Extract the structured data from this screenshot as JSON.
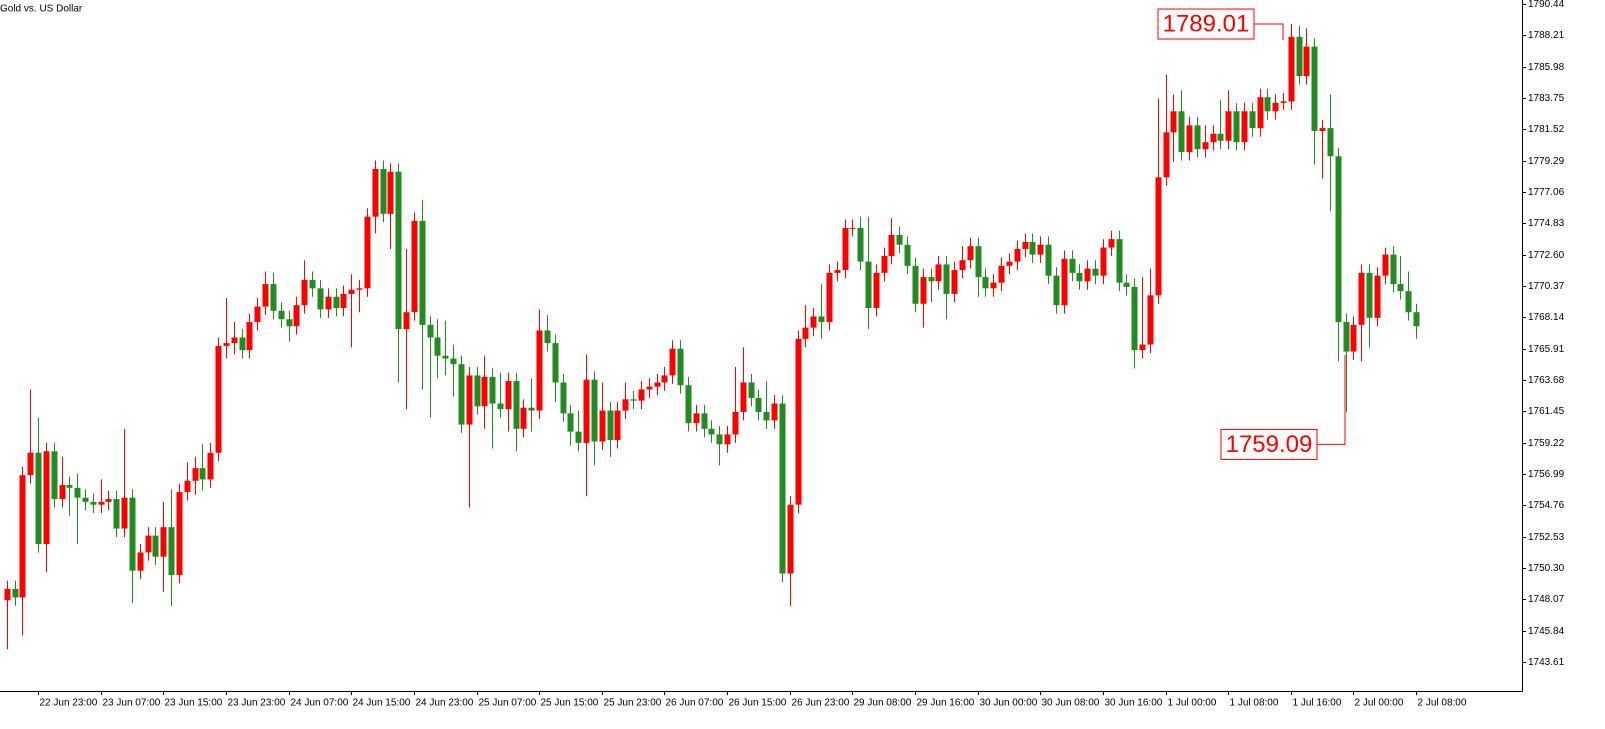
{
  "chart_data": {
    "type": "candlestick",
    "title": "Gold vs. US Dollar",
    "up_color": "#ff0000",
    "down_color": "#228b22",
    "grid": false,
    "ylim": [
      1741.54,
      1790.72
    ],
    "yticks": [
      1790.44,
      1788.21,
      1785.98,
      1783.75,
      1781.52,
      1779.29,
      1777.06,
      1774.83,
      {
        "value": 1772.6,
        "label": "1772.60"
      },
      1770.37,
      1768.14,
      1765.91,
      1763.68,
      1761.45,
      1759.22,
      1756.99,
      1754.76,
      1752.53,
      {
        "value": 1750.3,
        "label": "1750.30"
      },
      1748.07,
      1745.84,
      1743.61
    ],
    "categories": [
      null,
      null,
      null,
      null,
      "22 Jun 23:00",
      null,
      null,
      null,
      null,
      null,
      null,
      null,
      "23 Jun 07:00",
      null,
      null,
      null,
      null,
      null,
      null,
      null,
      "23 Jun 15:00",
      null,
      null,
      null,
      null,
      null,
      null,
      null,
      "23 Jun 23:00",
      null,
      null,
      null,
      null,
      null,
      null,
      null,
      "24 Jun 07:00",
      null,
      null,
      null,
      null,
      null,
      null,
      null,
      "24 Jun 15:00",
      null,
      null,
      null,
      null,
      null,
      null,
      null,
      "24 Jun 23:00",
      null,
      null,
      null,
      null,
      null,
      null,
      null,
      "25 Jun 07:00",
      null,
      null,
      null,
      null,
      null,
      null,
      null,
      "25 Jun 15:00",
      null,
      null,
      null,
      null,
      null,
      null,
      null,
      "25 Jun 23:00",
      null,
      null,
      null,
      null,
      null,
      null,
      null,
      "26 Jun 07:00",
      null,
      null,
      null,
      null,
      null,
      null,
      null,
      "26 Jun 15:00",
      null,
      null,
      null,
      null,
      null,
      null,
      null,
      "26 Jun 23:00",
      null,
      null,
      null,
      null,
      null,
      null,
      null,
      "29 Jun 08:00",
      null,
      null,
      null,
      null,
      null,
      null,
      null,
      "29 Jun 16:00",
      null,
      null,
      null,
      null,
      null,
      null,
      null,
      "30 Jun 00:00",
      null,
      null,
      null,
      null,
      null,
      null,
      null,
      "30 Jun 08:00",
      null,
      null,
      null,
      null,
      null,
      null,
      null,
      "30 Jun 16:00",
      null,
      null,
      null,
      null,
      null,
      null,
      null,
      "1 Jul 00:00",
      null,
      null,
      null,
      null,
      null,
      null,
      null,
      "1 Jul 08:00",
      null,
      null,
      null,
      null,
      null,
      null,
      null,
      "1 Jul 16:00",
      null,
      null,
      null,
      null,
      null,
      null,
      null,
      "2 Jul 00:00",
      null,
      null,
      null,
      null,
      null,
      null,
      null,
      "2 Jul 08:00"
    ],
    "open": [
      1748.0,
      1748.8,
      1748.2,
      1756.9,
      1758.5,
      1752.0,
      1758.6,
      1755.2,
      1756.2,
      1756.0,
      1755.3,
      1755.0,
      1754.8,
      1755.0,
      1755.2,
      1753.1,
      1755.3,
      1750.1,
      1751.4,
      1752.6,
      1751.1,
      1753.2,
      1749.8,
      1755.7,
      1756.5,
      1757.4,
      1756.6,
      1758.5,
      1766.1,
      1766.3,
      1766.7,
      1765.8,
      1767.8,
      1768.9,
      1770.5,
      1768.6,
      1768.0,
      1767.5,
      1769.0,
      1770.8,
      1770.2,
      1768.7,
      1769.6,
      1768.8,
      1769.8,
      1770.1,
      1770.2,
      1775.3,
      1778.7,
      1775.5,
      1778.5,
      1767.3,
      1768.5,
      1775.0,
      1767.6,
      1766.7,
      1765.4,
      1765.2,
      1764.8,
      1760.5,
      1764.0,
      1761.8,
      1763.9,
      1762.0,
      1761.6,
      1763.6,
      1760.2,
      1761.7,
      1761.5,
      1767.2,
      1766.3,
      1763.5,
      1761.3,
      1760.0,
      1759.2,
      1763.7,
      1759.3,
      1761.5,
      1759.4,
      1761.5,
      1762.3,
      1762.2,
      1763.0,
      1763.2,
      1763.5,
      1764.0,
      1765.9,
      1763.3,
      1760.6,
      1761.3,
      1760.2,
      1759.8,
      1759.1,
      1759.8,
      1761.4,
      1763.5,
      1762.4,
      1761.4,
      1760.8,
      1762.0,
      1749.9,
      1754.8,
      1766.6,
      1767.4,
      1768.2,
      1767.8,
      1771.3,
      1771.5,
      1774.5,
      1774.5,
      1772.1,
      1768.8,
      1771.3,
      1772.5,
      1774.0,
      1773.3,
      1771.8,
      1769.1,
      1771.0,
      1770.7,
      1771.9,
      1769.8,
      1771.5,
      1772.2,
      1773.2,
      1771.0,
      1770.2,
      1770.6,
      1771.8,
      1772.1,
      1773.0,
      1773.5,
      1772.6,
      1773.3,
      1771.1,
      1769.0,
      1772.3,
      1771.3,
      1770.7,
      1771.6,
      1771.1,
      1773.1,
      1773.7,
      1770.6,
      1770.3,
      1765.8,
      1766.2,
      1769.7,
      1778.1,
      1781.3,
      1782.8,
      1779.9,
      1781.8,
      1780.1,
      1780.6,
      1781.2,
      1780.7,
      1782.8,
      1780.6,
      1782.8,
      1781.6,
      1783.8,
      1782.8,
      1783.4,
      1783.5,
      1788.1,
      1785.3,
      1787.4,
      1781.4,
      1781.6,
      1779.6,
      1767.8,
      1765.7,
      1767.6,
      1771.3,
      1768.1,
      1771.1,
      1772.6,
      1770.5,
      1770.0,
      1768.5
    ],
    "high": [
      1749.4,
      1749.4,
      1757.5,
      1763.0,
      1761.0,
      1759.2,
      1759.2,
      1758.2,
      1756.8,
      1757.0,
      1755.9,
      1755.6,
      1756.6,
      1755.8,
      1755.8,
      1760.2,
      1755.9,
      1752.0,
      1753.2,
      1753.2,
      1755.0,
      1755.9,
      1756.3,
      1757.8,
      1758.2,
      1759.1,
      1759.2,
      1766.7,
      1769.5,
      1767.8,
      1767.3,
      1768.4,
      1769.5,
      1771.4,
      1771.3,
      1769.2,
      1768.6,
      1769.6,
      1772.2,
      1771.4,
      1770.8,
      1770.2,
      1770.2,
      1770.4,
      1771.2,
      1770.8,
      1775.9,
      1779.3,
      1779.3,
      1779.1,
      1779.1,
      1773.0,
      1775.6,
      1776.5,
      1768.2,
      1768.0,
      1767.9,
      1766.2,
      1765.4,
      1764.6,
      1764.6,
      1765.4,
      1764.5,
      1764.2,
      1764.2,
      1764.2,
      1762.3,
      1763.8,
      1768.7,
      1768.3,
      1766.9,
      1764.1,
      1761.9,
      1761.5,
      1765.5,
      1764.3,
      1763.5,
      1762.1,
      1762.1,
      1763.5,
      1762.9,
      1763.6,
      1763.8,
      1764.1,
      1764.6,
      1766.5,
      1766.5,
      1763.9,
      1761.9,
      1761.9,
      1760.8,
      1760.4,
      1760.4,
      1764.6,
      1766.0,
      1764.1,
      1763.0,
      1763.6,
      1762.6,
      1762.6,
      1755.4,
      1767.2,
      1769.0,
      1768.8,
      1770.5,
      1771.9,
      1772.1,
      1775.1,
      1775.1,
      1775.3,
      1775.3,
      1771.9,
      1773.1,
      1775.2,
      1774.6,
      1773.9,
      1772.4,
      1771.6,
      1771.6,
      1772.5,
      1772.5,
      1772.1,
      1773.2,
      1773.8,
      1773.8,
      1771.6,
      1771.2,
      1772.4,
      1772.7,
      1773.6,
      1774.1,
      1774.1,
      1773.9,
      1773.9,
      1771.7,
      1772.9,
      1772.9,
      1771.9,
      1772.2,
      1772.2,
      1773.7,
      1774.3,
      1774.3,
      1771.2,
      1770.9,
      1771.0,
      1771.6,
      1783.7,
      1785.4,
      1784.0,
      1784.3,
      1782.4,
      1782.4,
      1781.8,
      1781.8,
      1783.6,
      1784.3,
      1783.4,
      1783.4,
      1783.4,
      1784.4,
      1784.4,
      1784.0,
      1784.1,
      1789.01,
      1788.9,
      1788.7,
      1788.0,
      1782.2,
      1784.0,
      1780.2,
      1768.4,
      1768.2,
      1771.9,
      1771.9,
      1771.7,
      1773.1,
      1773.2,
      1772.5,
      1771.4,
      1769.1
    ],
    "low": [
      1744.5,
      1747.6,
      1745.5,
      1756.3,
      1751.4,
      1750.0,
      1754.6,
      1754.6,
      1754.0,
      1752.0,
      1754.4,
      1754.2,
      1754.2,
      1754.4,
      1752.5,
      1752.5,
      1747.8,
      1749.5,
      1750.8,
      1750.5,
      1748.6,
      1747.6,
      1749.2,
      1755.1,
      1755.5,
      1755.8,
      1756.0,
      1757.9,
      1765.2,
      1765.5,
      1765.2,
      1765.2,
      1767.2,
      1768.3,
      1768.0,
      1767.4,
      1766.4,
      1766.9,
      1768.4,
      1769.6,
      1768.1,
      1768.1,
      1768.2,
      1768.2,
      1766.0,
      1768.5,
      1769.6,
      1774.1,
      1774.9,
      1773.0,
      1763.5,
      1761.6,
      1767.9,
      1763.0,
      1761.0,
      1763.8,
      1764.0,
      1762.5,
      1759.9,
      1754.6,
      1761.2,
      1760.2,
      1758.8,
      1761.0,
      1760.0,
      1758.6,
      1759.6,
      1760.0,
      1760.9,
      1765.7,
      1762.1,
      1760.7,
      1759.0,
      1758.6,
      1755.4,
      1757.6,
      1758.7,
      1758.2,
      1758.8,
      1760.9,
      1761.6,
      1761.6,
      1762.4,
      1762.6,
      1762.9,
      1763.4,
      1762.7,
      1760.0,
      1760.0,
      1759.6,
      1759.2,
      1757.6,
      1758.5,
      1759.2,
      1760.8,
      1761.8,
      1760.8,
      1760.2,
      1760.2,
      1749.3,
      1747.6,
      1754.2,
      1766.0,
      1766.8,
      1766.6,
      1767.2,
      1770.7,
      1770.9,
      1773.9,
      1771.5,
      1767.3,
      1768.2,
      1770.7,
      1771.9,
      1772.7,
      1771.2,
      1768.5,
      1767.4,
      1769.2,
      1770.1,
      1768.0,
      1769.2,
      1770.9,
      1771.6,
      1769.6,
      1769.6,
      1769.6,
      1770.0,
      1771.2,
      1771.5,
      1772.4,
      1772.0,
      1772.0,
      1770.5,
      1768.4,
      1768.4,
      1770.7,
      1770.1,
      1770.1,
      1770.5,
      1770.5,
      1772.5,
      1770.0,
      1769.7,
      1764.5,
      1765.2,
      1765.6,
      1769.1,
      1777.5,
      1779.2,
      1779.3,
      1779.3,
      1779.5,
      1779.5,
      1780.0,
      1780.1,
      1780.1,
      1780.0,
      1780.0,
      1781.0,
      1781.0,
      1782.2,
      1782.2,
      1782.9,
      1782.9,
      1784.7,
      1784.7,
      1779.0,
      1778.0,
      1775.7,
      1765.0,
      1761.4,
      1765.1,
      1765.0,
      1766.0,
      1767.5,
      1770.5,
      1769.9,
      1769.4,
      1767.9,
      1766.6
    ],
    "close": [
      1748.8,
      1748.2,
      1756.9,
      1758.5,
      1752.0,
      1758.6,
      1755.2,
      1756.2,
      1756.0,
      1755.3,
      1755.0,
      1754.8,
      1755.0,
      1755.2,
      1753.1,
      1755.3,
      1750.1,
      1751.4,
      1752.6,
      1751.1,
      1753.2,
      1749.8,
      1755.7,
      1756.5,
      1757.4,
      1756.6,
      1758.5,
      1766.1,
      1766.3,
      1766.7,
      1765.8,
      1767.8,
      1768.9,
      1770.5,
      1768.6,
      1768.0,
      1767.5,
      1769.0,
      1770.8,
      1770.2,
      1768.7,
      1769.6,
      1768.8,
      1769.8,
      1770.1,
      1770.2,
      1775.3,
      1778.7,
      1775.5,
      1778.5,
      1767.3,
      1768.5,
      1775.0,
      1767.6,
      1766.7,
      1765.4,
      1765.2,
      1764.8,
      1760.5,
      1764.0,
      1761.8,
      1763.9,
      1762.0,
      1761.6,
      1763.6,
      1760.2,
      1761.7,
      1761.5,
      1767.2,
      1766.3,
      1763.5,
      1761.3,
      1760.0,
      1759.2,
      1763.7,
      1759.3,
      1761.5,
      1759.4,
      1761.5,
      1762.3,
      1762.2,
      1763.0,
      1763.2,
      1763.5,
      1764.0,
      1765.9,
      1763.3,
      1760.6,
      1761.3,
      1760.2,
      1759.8,
      1759.1,
      1759.8,
      1761.4,
      1763.5,
      1762.4,
      1761.4,
      1760.8,
      1762.0,
      1749.9,
      1754.8,
      1766.6,
      1767.4,
      1768.2,
      1767.8,
      1771.3,
      1771.5,
      1774.5,
      1774.5,
      1772.1,
      1768.8,
      1771.3,
      1772.5,
      1774.0,
      1773.3,
      1771.8,
      1769.1,
      1771.0,
      1770.7,
      1771.9,
      1769.8,
      1771.5,
      1772.2,
      1773.2,
      1771.0,
      1770.2,
      1770.6,
      1771.8,
      1772.1,
      1773.0,
      1773.5,
      1772.6,
      1773.3,
      1771.1,
      1769.0,
      1772.3,
      1771.3,
      1770.7,
      1771.6,
      1771.1,
      1773.1,
      1773.7,
      1770.6,
      1770.3,
      1765.8,
      1766.2,
      1769.7,
      1778.1,
      1781.3,
      1782.8,
      1779.9,
      1781.8,
      1780.1,
      1780.6,
      1781.2,
      1780.7,
      1782.8,
      1780.6,
      1782.8,
      1781.6,
      1783.8,
      1782.8,
      1783.4,
      1783.5,
      1788.1,
      1785.3,
      1787.4,
      1781.4,
      1781.6,
      1779.6,
      1767.8,
      1765.7,
      1767.6,
      1771.3,
      1768.1,
      1771.1,
      1772.6,
      1770.5,
      1770.0,
      1768.5,
      1767.5
    ],
    "annotations": [
      {
        "value": 1789.01
      },
      {
        "value": 1759.09
      }
    ]
  }
}
